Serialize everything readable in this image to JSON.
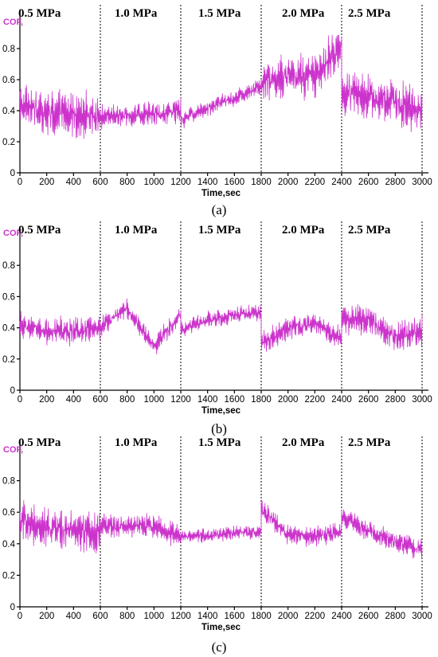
{
  "colors": {
    "series": "#cc33cc",
    "axis": "#000000",
    "ylabel": "#cc33cc"
  },
  "chart_data": [
    {
      "type": "line",
      "caption": "(a)",
      "ylabel": "COF,",
      "xlabel": "Time,sec",
      "xlim": [
        0,
        3000
      ],
      "ylim": [
        0,
        1.0
      ],
      "xticks": [
        0,
        200,
        400,
        600,
        800,
        1000,
        1200,
        1400,
        1600,
        1800,
        2000,
        2200,
        2400,
        2600,
        2800,
        3000
      ],
      "yticks": [
        0,
        0.2,
        0.4,
        0.6,
        0.8
      ],
      "separators": [
        600,
        1200,
        1800,
        2400,
        3000
      ],
      "phases": [
        "0.5 MPa",
        "1.0 MPa",
        "1.5 MPa",
        "2.0 MPa",
        "2.5 MPa"
      ],
      "series": [
        {
          "segments": [
            {
              "x0": 0,
              "x1": 600,
              "base": [
                0.45,
                0.38,
                0.38,
                0.37
              ],
              "noise": 0.13
            },
            {
              "x0": 600,
              "x1": 1200,
              "base": [
                0.36,
                0.37,
                0.38,
                0.4
              ],
              "noise": 0.07
            },
            {
              "x0": 1200,
              "x1": 1800,
              "base": [
                0.34,
                0.42,
                0.48,
                0.56
              ],
              "noise": 0.05
            },
            {
              "x0": 1800,
              "x1": 2400,
              "base": [
                0.6,
                0.62,
                0.64,
                0.82
              ],
              "noise": 0.14
            },
            {
              "x0": 2400,
              "x1": 3000,
              "base": [
                0.52,
                0.5,
                0.45,
                0.4
              ],
              "noise": 0.14
            }
          ]
        }
      ]
    },
    {
      "type": "line",
      "caption": "(b)",
      "ylabel": "COF,",
      "xlabel": "Time,sec",
      "xlim": [
        0,
        3000
      ],
      "ylim": [
        0,
        1.0
      ],
      "xticks": [
        0,
        200,
        400,
        600,
        800,
        1000,
        1200,
        1400,
        1600,
        1800,
        2000,
        2200,
        2400,
        2600,
        2800,
        3000
      ],
      "yticks": [
        0,
        0.2,
        0.4,
        0.6,
        0.8
      ],
      "separators": [
        600,
        1200,
        1800,
        2400,
        3000
      ],
      "phases": [
        "0.5 MPa",
        "1.0 MPa",
        "1.5 MPa",
        "2.0 MPa",
        "2.5 MPa"
      ],
      "series": [
        {
          "segments": [
            {
              "x0": 0,
              "x1": 600,
              "base": [
                0.42,
                0.38,
                0.38,
                0.4
              ],
              "noise": 0.08
            },
            {
              "x0": 600,
              "x1": 1200,
              "base": [
                0.4,
                0.52,
                0.28,
                0.48
              ],
              "noise": 0.06
            },
            {
              "x0": 1200,
              "x1": 1800,
              "base": [
                0.38,
                0.45,
                0.48,
                0.5
              ],
              "noise": 0.05
            },
            {
              "x0": 1800,
              "x1": 2400,
              "base": [
                0.3,
                0.4,
                0.42,
                0.33
              ],
              "noise": 0.07
            },
            {
              "x0": 2400,
              "x1": 3000,
              "base": [
                0.46,
                0.44,
                0.34,
                0.38
              ],
              "noise": 0.09
            }
          ]
        }
      ]
    },
    {
      "type": "line",
      "caption": "(c)",
      "ylabel": "COF,",
      "xlabel": "Time,sec",
      "xlim": [
        0,
        3000
      ],
      "ylim": [
        0,
        1.0
      ],
      "xticks": [
        0,
        200,
        400,
        600,
        800,
        1000,
        1200,
        1400,
        1600,
        1800,
        2000,
        2200,
        2400,
        2600,
        2800,
        3000
      ],
      "yticks": [
        0,
        0.2,
        0.4,
        0.6,
        0.8
      ],
      "separators": [
        600,
        1200,
        1800,
        2400,
        3000
      ],
      "phases": [
        "0.5 MPa",
        "1.0 MPa",
        "1.5 MPa",
        "2.0 MPa",
        "2.5 MPa"
      ],
      "series": [
        {
          "segments": [
            {
              "x0": 0,
              "x1": 600,
              "base": [
                0.55,
                0.5,
                0.48,
                0.46
              ],
              "noise": 0.12
            },
            {
              "x0": 600,
              "x1": 1200,
              "base": [
                0.52,
                0.5,
                0.52,
                0.44
              ],
              "noise": 0.07
            },
            {
              "x0": 1200,
              "x1": 1800,
              "base": [
                0.45,
                0.45,
                0.47,
                0.48
              ],
              "noise": 0.04
            },
            {
              "x0": 1800,
              "x1": 2400,
              "base": [
                0.62,
                0.46,
                0.44,
                0.48
              ],
              "noise": 0.06
            },
            {
              "x0": 2400,
              "x1": 3000,
              "base": [
                0.58,
                0.48,
                0.42,
                0.36
              ],
              "noise": 0.06
            }
          ]
        }
      ]
    }
  ]
}
